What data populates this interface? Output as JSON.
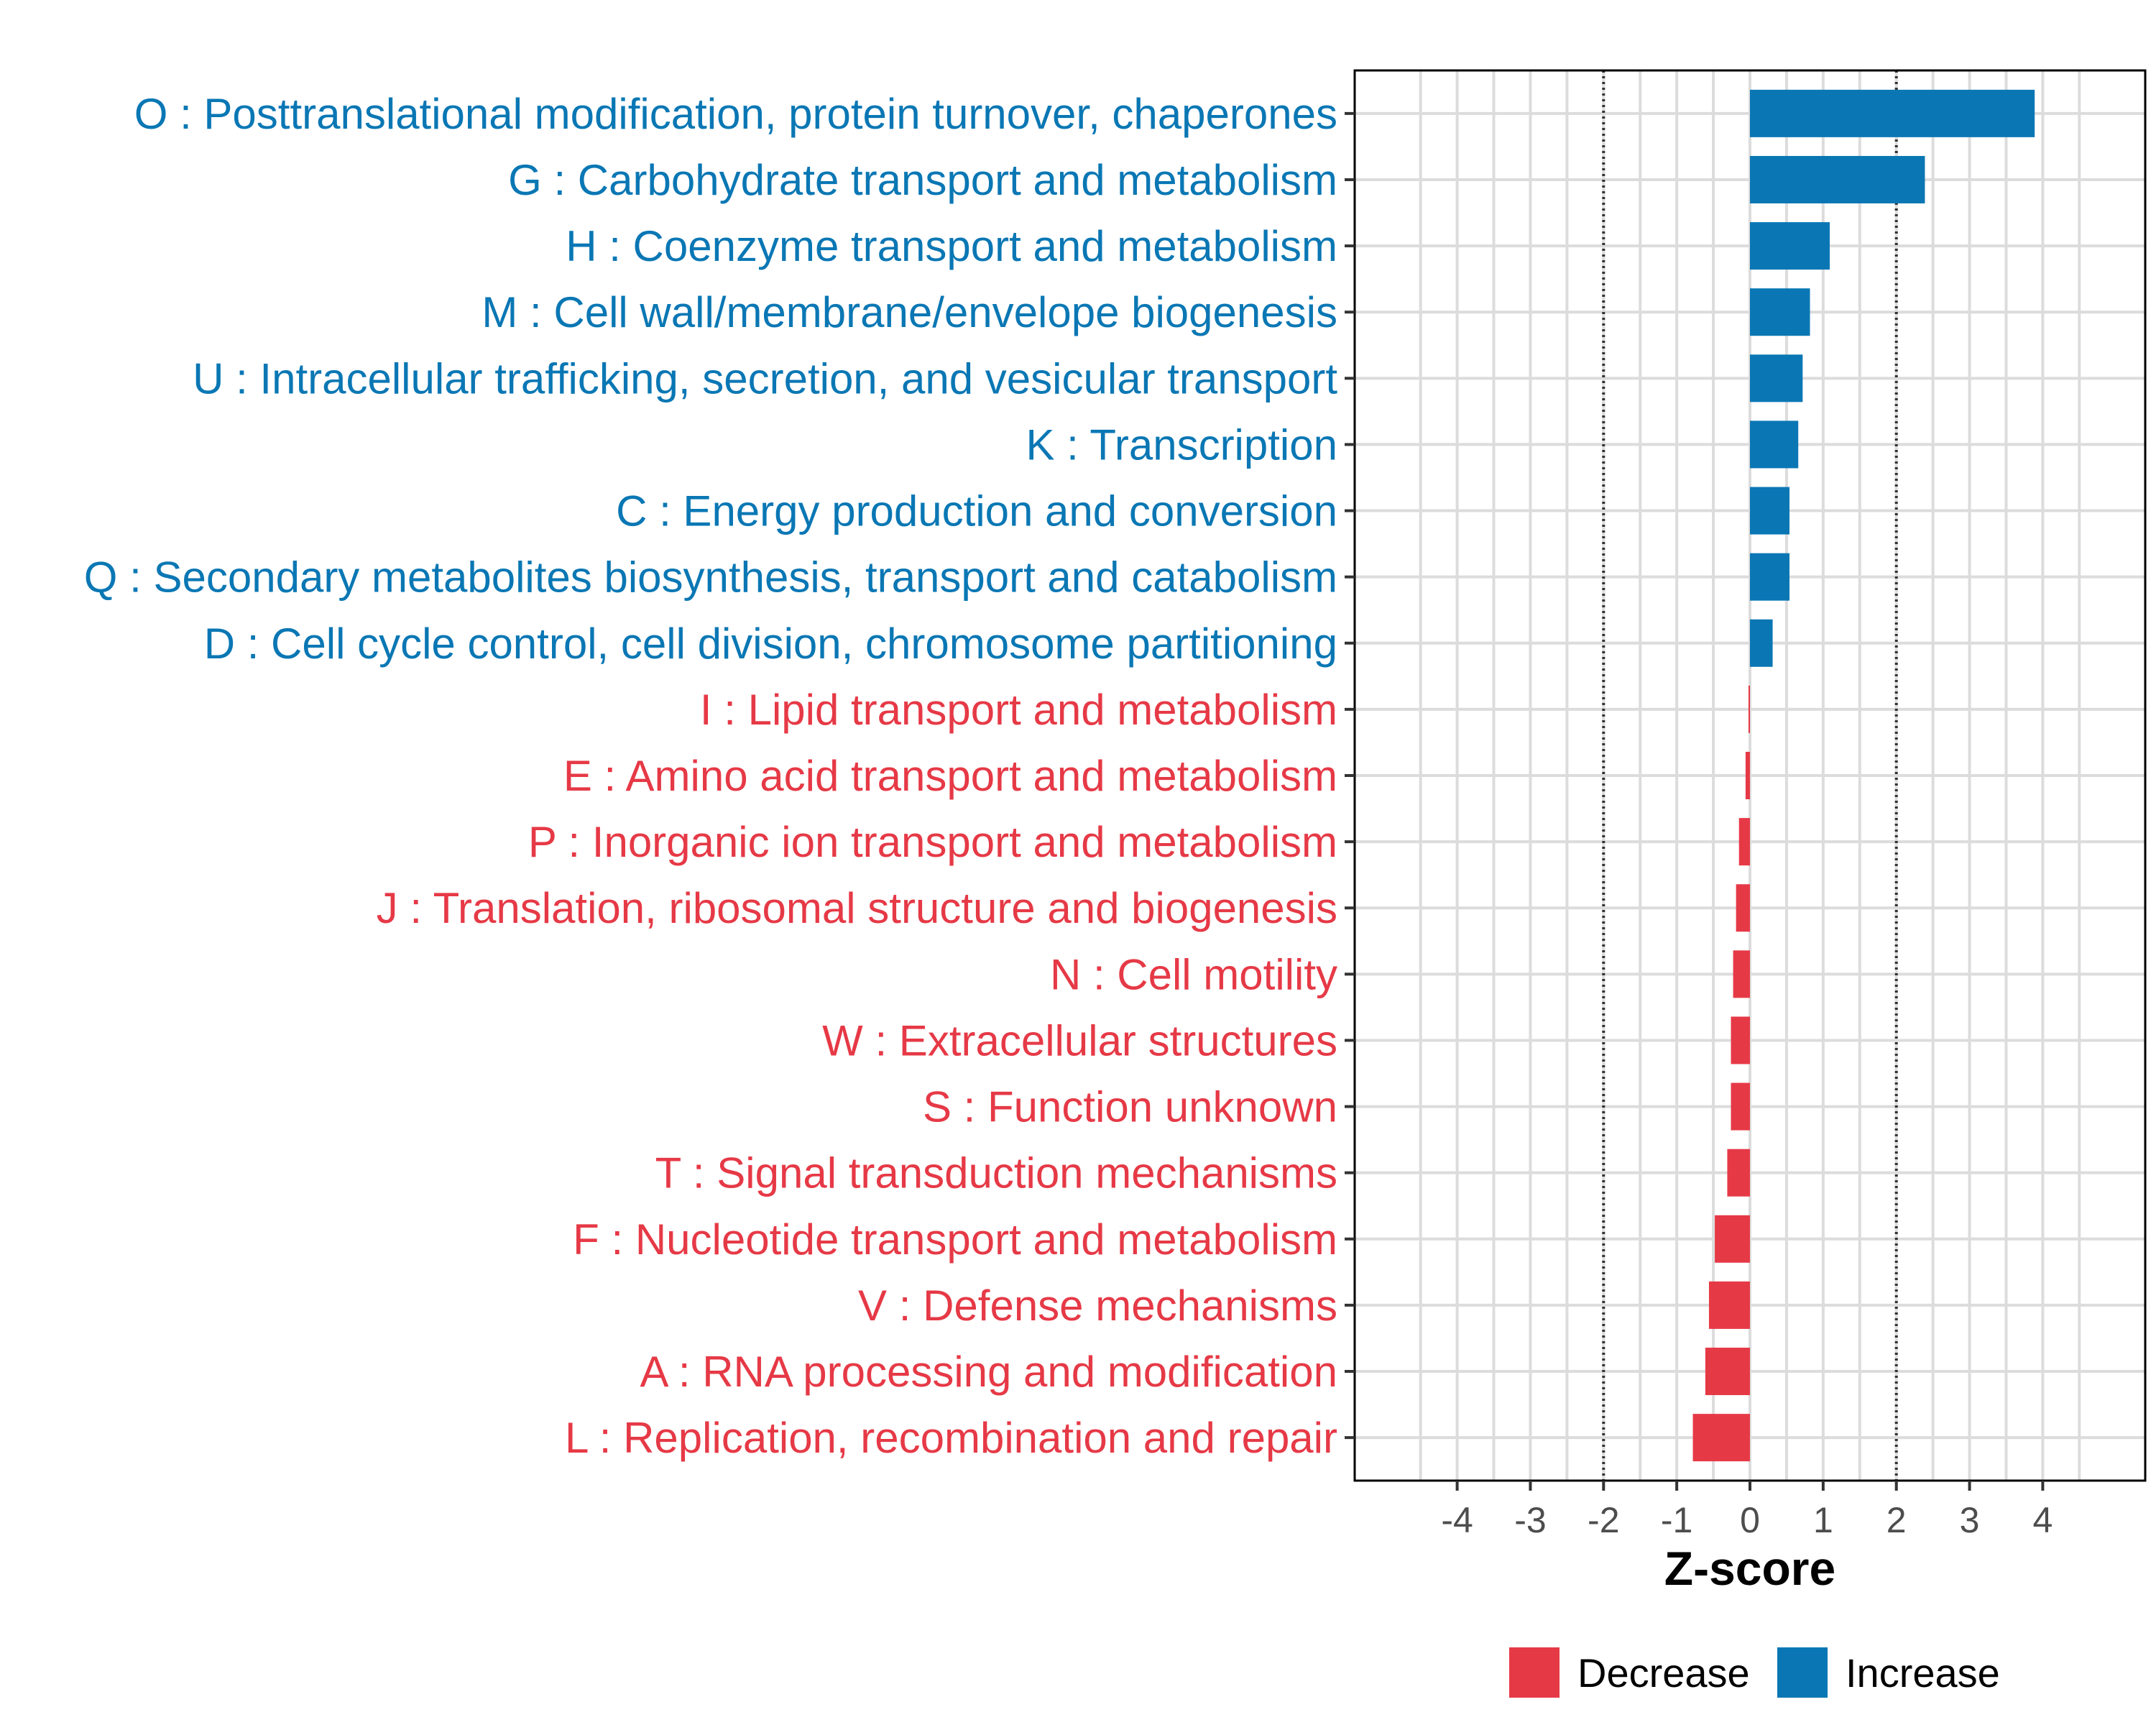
{
  "chart_data": {
    "type": "bar",
    "orientation": "horizontal",
    "xlabel": "Z-score",
    "xlim": [
      -5.4,
      5.4
    ],
    "x_ticks": [
      -4,
      -3,
      -2,
      -1,
      0,
      1,
      2,
      3,
      4
    ],
    "x_tick_labels": [
      "-4",
      "-3",
      "-2",
      "-1",
      "0",
      "1",
      "2",
      "3",
      "4"
    ],
    "reference_lines": [
      -2,
      2
    ],
    "grid": true,
    "colors": {
      "Increase": "#0a77b4",
      "Decrease": "#e63946"
    },
    "categories": [
      "O : Posttranslational modification, protein turnover, chaperones",
      "G : Carbohydrate transport and metabolism",
      "H : Coenzyme transport and metabolism",
      "M : Cell wall/membrane/envelope biogenesis",
      "U : Intracellular trafficking, secretion, and vesicular transport",
      "K : Transcription",
      "C : Energy production and conversion",
      "Q : Secondary metabolites biosynthesis, transport and catabolism",
      "D : Cell cycle control, cell division, chromosome partitioning",
      "I : Lipid transport and metabolism",
      "E : Amino acid transport and metabolism",
      "P : Inorganic ion transport and metabolism",
      "J : Translation, ribosomal structure and biogenesis",
      "N : Cell motility",
      "W : Extracellular structures",
      "S : Function unknown",
      "T : Signal transduction mechanisms",
      "F : Nucleotide transport and metabolism",
      "V : Defense mechanisms",
      "A : RNA processing and modification",
      "L : Replication, recombination and repair"
    ],
    "values": [
      3.89,
      2.39,
      1.09,
      0.82,
      0.72,
      0.66,
      0.54,
      0.54,
      0.31,
      -0.02,
      -0.06,
      -0.15,
      -0.19,
      -0.23,
      -0.26,
      -0.26,
      -0.31,
      -0.48,
      -0.56,
      -0.61,
      -0.78
    ],
    "groups": [
      "Increase",
      "Increase",
      "Increase",
      "Increase",
      "Increase",
      "Increase",
      "Increase",
      "Increase",
      "Increase",
      "Decrease",
      "Decrease",
      "Decrease",
      "Decrease",
      "Decrease",
      "Decrease",
      "Decrease",
      "Decrease",
      "Decrease",
      "Decrease",
      "Decrease",
      "Decrease"
    ],
    "legend": {
      "position": "bottom",
      "items": [
        {
          "label": "Decrease",
          "color": "#e63946"
        },
        {
          "label": "Increase",
          "color": "#0a77b4"
        }
      ]
    }
  }
}
